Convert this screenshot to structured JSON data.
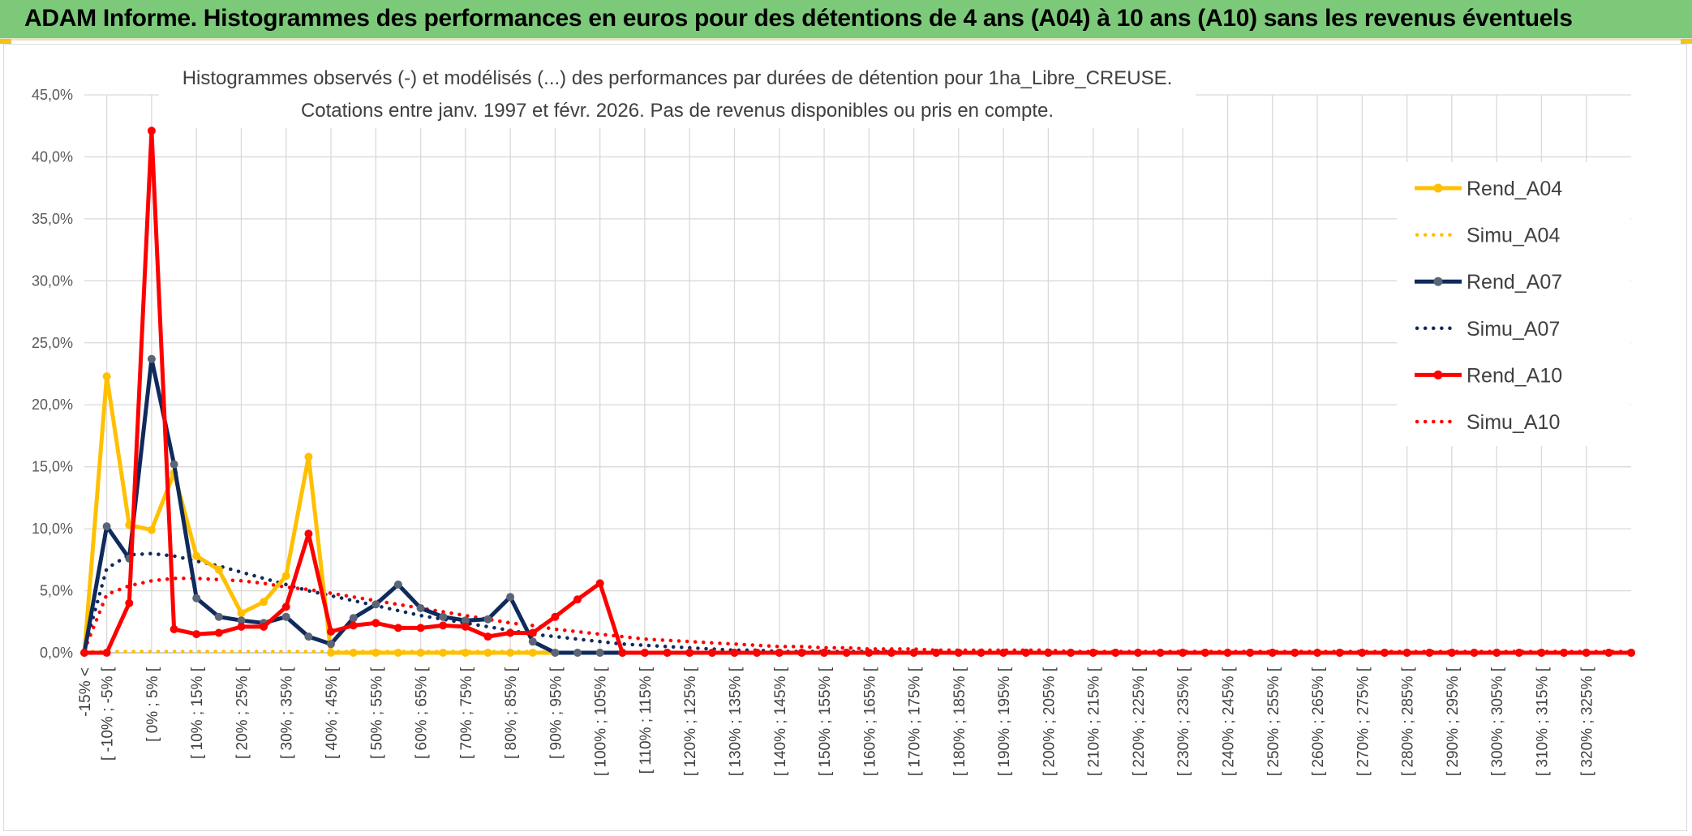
{
  "header": {
    "title": "ADAM Informe. Histogrammes des performances en euros pour des détentions de 4 ans (A04) à 10 ans (A10) sans les revenus éventuels"
  },
  "colors": {
    "banner": "#7cc97a",
    "a04": "#ffc000",
    "a07": "#0f2a5c",
    "a10": "#ff0000",
    "marker_a07": "#5a6578"
  },
  "chart_data": {
    "type": "line",
    "title": [
      "Histogrammes observés (-) et modélisés (...) des performances par durées de détention pour 1ha_Libre_CREUSE.",
      "Cotations entre janv. 1997 et févr. 2026. Pas de revenus disponibles ou pris en compte."
    ],
    "ylim": [
      0,
      45
    ],
    "yticks": [
      "0,0%",
      "5,0%",
      "10,0%",
      "15,0%",
      "20,0%",
      "25,0%",
      "30,0%",
      "35,0%",
      "40,0%",
      "45,0%"
    ],
    "x_labels": [
      "-15% <",
      "[ -10% ; -5% [",
      "[ 0% ; 5% [",
      "[ 10% ; 15% [",
      "[ 20% ; 25% [",
      "[ 30% ; 35% [",
      "[ 40% ; 45% [",
      "[ 50% ; 55% [",
      "[ 60% ; 65% [",
      "[ 70% ; 75% [",
      "[ 80% ; 85% [",
      "[ 90% ; 95% [",
      "[ 100% ; 105% [",
      "[ 110% ; 115% [",
      "[ 120% ; 125% [",
      "[ 130% ; 135% [",
      "[ 140% ; 145% [",
      "[ 150% ; 155% [",
      "[ 160% ; 165% [",
      "[ 170% ; 175% [",
      "[ 180% ; 185% [",
      "[ 190% ; 195% [",
      "[ 200% ; 205% [",
      "[ 210% ; 215% [",
      "[ 220% ; 225% [",
      "[ 230% ; 235% [",
      "[ 240% ; 245% [",
      "[ 250% ; 255% [",
      "[ 260% ; 265% [",
      "[ 270% ; 275% [",
      "[ 280% ; 285% [",
      "[ 290% ; 295% [",
      "[ 300% ; 305% [",
      "[ 310% ; 315% [",
      "[ 320% ; 325% ["
    ],
    "grid": true,
    "legend": "right",
    "series": [
      {
        "name": "Rend_A04",
        "style": "solid",
        "color": "#ffc000",
        "values": [
          0,
          22.3,
          10.3,
          9.9,
          14.5,
          7.8,
          6.7,
          3.2,
          4.1,
          6.2,
          15.8,
          0,
          0,
          0,
          0,
          0,
          0,
          0,
          0,
          0,
          0,
          0,
          0,
          0,
          0,
          0,
          0,
          0,
          0,
          0,
          0,
          0,
          0,
          0,
          0,
          0,
          0,
          0,
          0,
          0,
          0,
          0,
          0,
          0,
          0,
          0,
          0,
          0,
          0,
          0,
          0,
          0,
          0,
          0,
          0,
          0,
          0,
          0,
          0,
          0,
          0,
          0,
          0,
          0,
          0,
          0,
          0,
          0,
          0,
          0
        ]
      },
      {
        "name": "Simu_A04",
        "style": "dotted",
        "color": "#ffc000",
        "values": [
          0.1,
          0.1,
          0.1,
          0.1,
          0.1,
          0.1,
          0.1,
          0.1,
          0.1,
          0.1,
          0.1,
          0.1,
          0.1,
          0.1,
          0.1,
          0.1,
          0.1,
          0.1,
          0.1,
          0.1,
          0.1,
          0,
          0,
          0,
          0,
          0,
          0,
          0,
          0,
          0,
          0,
          0,
          0,
          0,
          0,
          0,
          0,
          0,
          0,
          0,
          0,
          0,
          0,
          0,
          0,
          0,
          0,
          0,
          0,
          0,
          0,
          0,
          0,
          0,
          0,
          0,
          0,
          0,
          0,
          0,
          0,
          0,
          0,
          0,
          0,
          0,
          0,
          0,
          0,
          0
        ]
      },
      {
        "name": "Rend_A07",
        "style": "solid",
        "color": "#0f2a5c",
        "values": [
          0,
          10.2,
          7.6,
          23.7,
          15.2,
          4.4,
          2.9,
          2.6,
          2.4,
          2.9,
          1.3,
          0.7,
          2.8,
          3.9,
          5.5,
          3.6,
          2.9,
          2.6,
          2.7,
          4.5,
          0.9,
          0,
          0,
          0,
          0,
          0,
          0,
          0,
          0,
          0,
          0,
          0,
          0,
          0,
          0,
          0,
          0,
          0,
          0,
          0,
          0,
          0,
          0,
          0,
          0,
          0,
          0,
          0,
          0,
          0,
          0,
          0,
          0,
          0,
          0,
          0,
          0,
          0,
          0,
          0,
          0,
          0,
          0,
          0,
          0,
          0,
          0,
          0,
          0,
          0
        ]
      },
      {
        "name": "Simu_A07",
        "style": "dotted",
        "color": "#0f2a5c",
        "values": [
          0.3,
          6.8,
          7.9,
          8.0,
          7.8,
          7.4,
          7.0,
          6.5,
          6.0,
          5.5,
          5.0,
          4.6,
          4.2,
          3.8,
          3.4,
          3.0,
          2.7,
          2.4,
          2.1,
          1.8,
          1.5,
          1.3,
          1.1,
          0.9,
          0.7,
          0.6,
          0.5,
          0.4,
          0.3,
          0.2,
          0.2,
          0.1,
          0.1,
          0.1,
          0.1,
          0.1,
          0.1,
          0,
          0,
          0,
          0,
          0,
          0,
          0,
          0,
          0,
          0,
          0,
          0,
          0,
          0,
          0,
          0,
          0,
          0,
          0,
          0,
          0,
          0,
          0,
          0,
          0,
          0,
          0,
          0,
          0,
          0,
          0,
          0,
          0
        ]
      },
      {
        "name": "Rend_A10",
        "style": "solid",
        "color": "#ff0000",
        "values": [
          0,
          0,
          4.0,
          42.1,
          1.9,
          1.5,
          1.6,
          2.1,
          2.1,
          3.7,
          9.6,
          1.7,
          2.2,
          2.4,
          2.0,
          2.0,
          2.2,
          2.1,
          1.3,
          1.6,
          1.6,
          2.9,
          4.3,
          5.6,
          0,
          0,
          0,
          0,
          0,
          0,
          0,
          0,
          0,
          0,
          0,
          0,
          0,
          0,
          0,
          0,
          0,
          0,
          0,
          0,
          0,
          0,
          0,
          0,
          0,
          0,
          0,
          0,
          0,
          0,
          0,
          0,
          0,
          0,
          0,
          0,
          0,
          0,
          0,
          0,
          0,
          0,
          0,
          0,
          0,
          0
        ]
      },
      {
        "name": "Simu_A10",
        "style": "dotted",
        "color": "#ff0000",
        "values": [
          0.2,
          4.7,
          5.4,
          5.8,
          6.0,
          6.0,
          5.9,
          5.8,
          5.6,
          5.3,
          5.1,
          4.8,
          4.5,
          4.2,
          3.9,
          3.6,
          3.3,
          3.0,
          2.7,
          2.4,
          2.2,
          1.9,
          1.7,
          1.5,
          1.3,
          1.1,
          1.0,
          0.9,
          0.8,
          0.7,
          0.6,
          0.5,
          0.5,
          0.4,
          0.4,
          0.3,
          0.3,
          0.3,
          0.2,
          0.2,
          0.2,
          0.2,
          0.2,
          0.2,
          0.1,
          0.1,
          0.1,
          0.1,
          0.1,
          0.1,
          0.1,
          0.1,
          0.1,
          0.1,
          0.1,
          0.1,
          0.1,
          0.1,
          0.1,
          0.1,
          0.1,
          0.1,
          0.1,
          0.1,
          0.1,
          0.1,
          0.1,
          0.1,
          0.1,
          0.1
        ]
      }
    ]
  }
}
